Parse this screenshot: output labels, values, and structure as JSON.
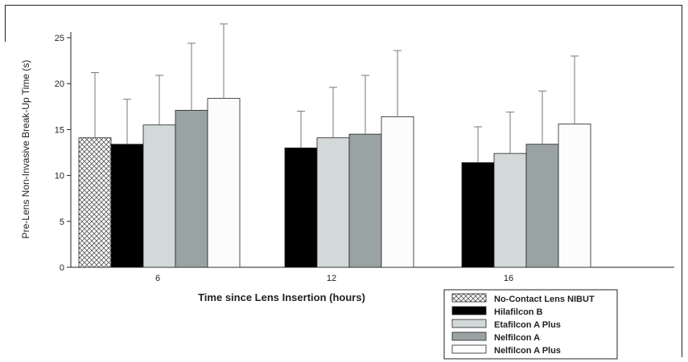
{
  "chart_data": {
    "type": "bar",
    "title": "",
    "xlabel": "Time since Lens Insertion (hours)",
    "ylabel": "Pre-Lens Non-Invasive Break-Up Time (s)",
    "categories": [
      "6",
      "12",
      "16"
    ],
    "yticks": [
      0,
      5,
      10,
      15,
      20,
      25
    ],
    "ylim": [
      0,
      27
    ],
    "legend_position": "bottom-right",
    "series": [
      {
        "name": "No-Contact Lens NIBUT",
        "pattern": "crosshatch",
        "color": "#ffffff",
        "values": [
          14.1,
          null,
          null
        ],
        "errors": [
          7.1,
          null,
          null
        ]
      },
      {
        "name": "Hilafilcon B",
        "color": "#000000",
        "values": [
          13.4,
          13.0,
          11.4
        ],
        "errors": [
          4.9,
          4.0,
          3.9
        ]
      },
      {
        "name": "Etafilcon A Plus",
        "color": "#d3d8d8",
        "values": [
          15.5,
          14.1,
          12.4
        ],
        "errors": [
          5.4,
          5.5,
          4.5
        ]
      },
      {
        "name": "Nelfilcon A",
        "color": "#9aa3a3",
        "values": [
          17.1,
          14.5,
          13.4
        ],
        "errors": [
          7.3,
          6.4,
          5.8
        ]
      },
      {
        "name": "Nelfilcon A Plus",
        "color": "#fcfcfc",
        "values": [
          18.4,
          16.4,
          15.6
        ],
        "errors": [
          8.1,
          7.2,
          7.4
        ]
      }
    ]
  }
}
